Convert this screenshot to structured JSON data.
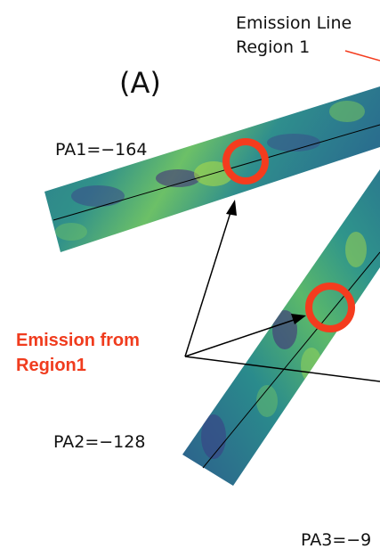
{
  "panel_label": "(A)",
  "region_label": {
    "line1": "Emission Line",
    "line2": "Region 1"
  },
  "emission_label": {
    "line1": "Emission from",
    "line2": "Region1"
  },
  "slits": [
    {
      "label": "PA1=−164"
    },
    {
      "label": "PA2=−128"
    },
    {
      "label": "PA3=−9"
    }
  ]
}
